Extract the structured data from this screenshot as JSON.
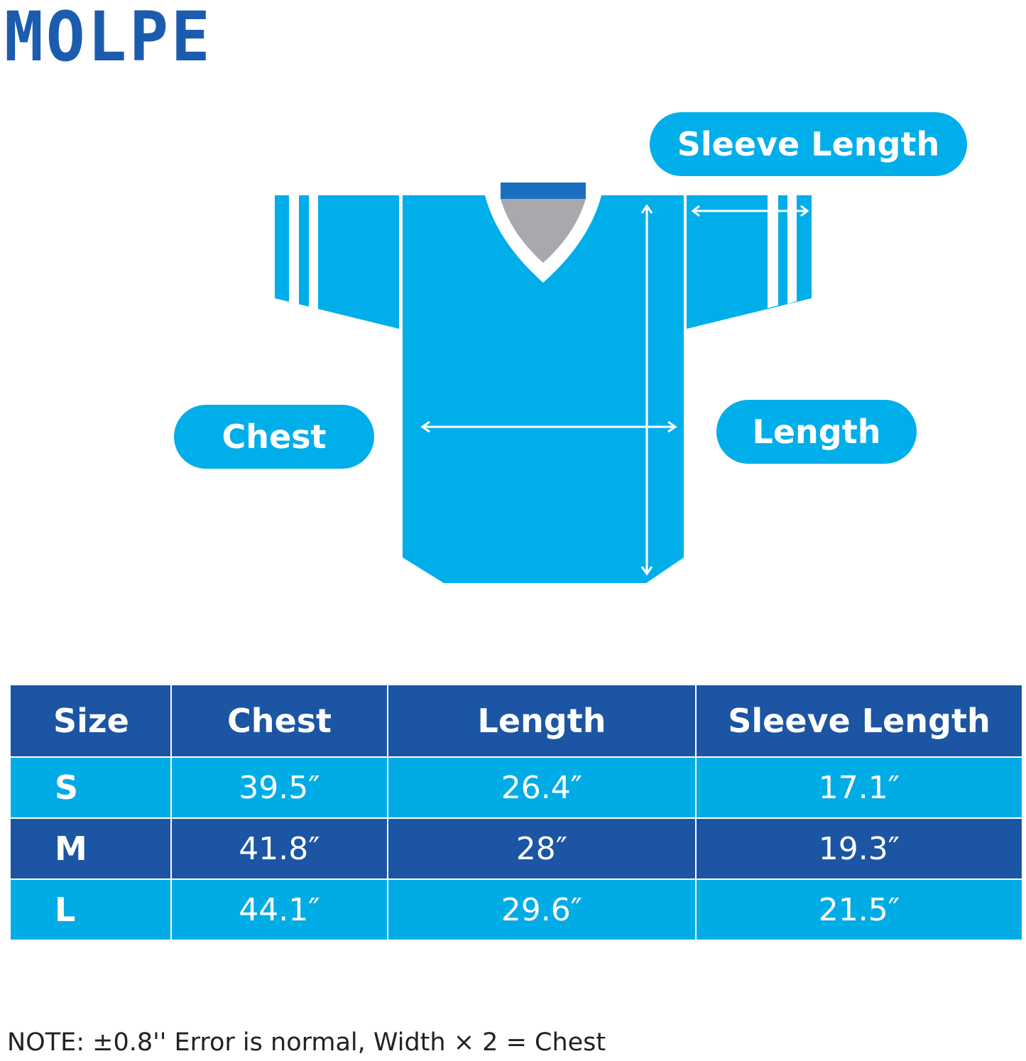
{
  "brand": {
    "logo": "MOLPE"
  },
  "colors": {
    "light_blue": "#00aeea",
    "dark_blue": "#1b55a3",
    "collar_gray": "#a7a9ac"
  },
  "diagram": {
    "labels": {
      "sleeve_length": "Sleeve Length",
      "chest": "Chest",
      "length": "Length"
    }
  },
  "size_table": {
    "headers": [
      "Size",
      "Chest",
      "Length",
      "Sleeve Length"
    ],
    "rows": [
      {
        "size": "S",
        "chest": "39.5″",
        "length": "26.4″",
        "sleeve": "17.1″"
      },
      {
        "size": "M",
        "chest": "41.8″",
        "length": "28″",
        "sleeve": "19.3″"
      },
      {
        "size": "L",
        "chest": "44.1″",
        "length": "29.6″",
        "sleeve": "21.5″"
      }
    ]
  },
  "note": "NOTE: ±0.8'' Error is normal, Width × 2 = Chest"
}
